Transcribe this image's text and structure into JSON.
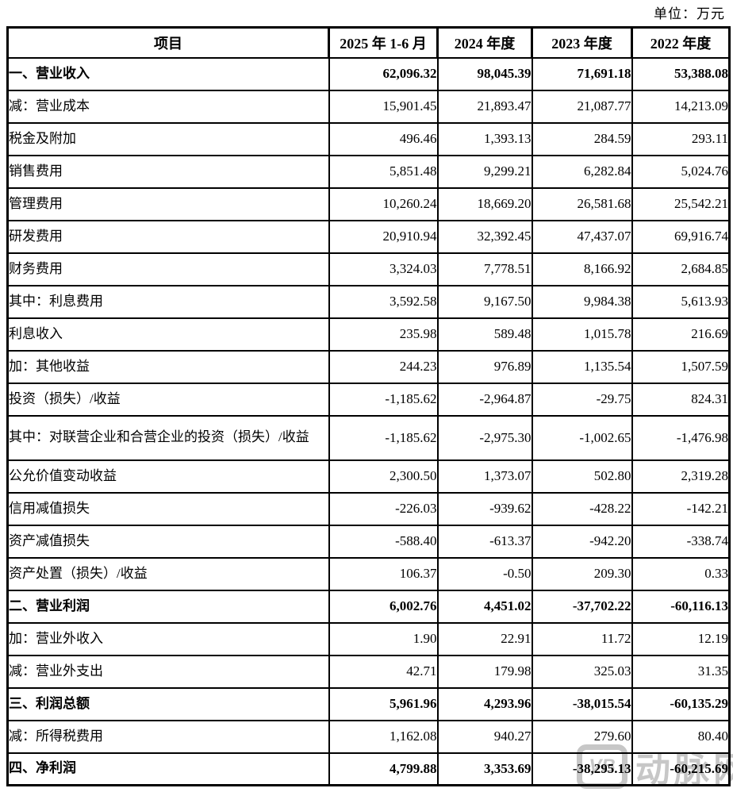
{
  "meta": {
    "unit_label": "单位：万元"
  },
  "table": {
    "columns": [
      "项目",
      "2025 年 1-6 月",
      "2024 年度",
      "2023 年度",
      "2022 年度"
    ],
    "rows": [
      {
        "label": "一、营业收入",
        "values": [
          "62,096.32",
          "98,045.39",
          "71,691.18",
          "53,388.08"
        ],
        "bold": true
      },
      {
        "label": "减：营业成本",
        "values": [
          "15,901.45",
          "21,893.47",
          "21,087.77",
          "14,213.09"
        ]
      },
      {
        "label": "税金及附加",
        "values": [
          "496.46",
          "1,393.13",
          "284.59",
          "293.11"
        ]
      },
      {
        "label": "销售费用",
        "values": [
          "5,851.48",
          "9,299.21",
          "6,282.84",
          "5,024.76"
        ]
      },
      {
        "label": "管理费用",
        "values": [
          "10,260.24",
          "18,669.20",
          "26,581.68",
          "25,542.21"
        ]
      },
      {
        "label": "研发费用",
        "values": [
          "20,910.94",
          "32,392.45",
          "47,437.07",
          "69,916.74"
        ]
      },
      {
        "label": "财务费用",
        "values": [
          "3,324.03",
          "7,778.51",
          "8,166.92",
          "2,684.85"
        ]
      },
      {
        "label": "其中：利息费用",
        "values": [
          "3,592.58",
          "9,167.50",
          "9,984.38",
          "5,613.93"
        ]
      },
      {
        "label": "利息收入",
        "values": [
          "235.98",
          "589.48",
          "1,015.78",
          "216.69"
        ]
      },
      {
        "label": "加：其他收益",
        "values": [
          "244.23",
          "976.89",
          "1,135.54",
          "1,507.59"
        ]
      },
      {
        "label": "投资（损失）/收益",
        "values": [
          "-1,185.62",
          "-2,964.87",
          "-29.75",
          "824.31"
        ]
      },
      {
        "label": "其中：对联营企业和合营企业的投资（损失）/收益",
        "values": [
          "-1,185.62",
          "-2,975.30",
          "-1,002.65",
          "-1,476.98"
        ],
        "tall": true
      },
      {
        "label": "公允价值变动收益",
        "values": [
          "2,300.50",
          "1,373.07",
          "502.80",
          "2,319.28"
        ]
      },
      {
        "label": "信用减值损失",
        "values": [
          "-226.03",
          "-939.62",
          "-428.22",
          "-142.21"
        ]
      },
      {
        "label": "资产减值损失",
        "values": [
          "-588.40",
          "-613.37",
          "-942.20",
          "-338.74"
        ]
      },
      {
        "label": "资产处置（损失）/收益",
        "values": [
          "106.37",
          "-0.50",
          "209.30",
          "0.33"
        ]
      },
      {
        "label": "二、营业利润",
        "values": [
          "6,002.76",
          "4,451.02",
          "-37,702.22",
          "-60,116.13"
        ],
        "bold": true
      },
      {
        "label": "加：营业外收入",
        "values": [
          "1.90",
          "22.91",
          "11.72",
          "12.19"
        ]
      },
      {
        "label": "减：营业外支出",
        "values": [
          "42.71",
          "179.98",
          "325.03",
          "31.35"
        ]
      },
      {
        "label": "三、利润总额",
        "values": [
          "5,961.96",
          "4,293.96",
          "-38,015.54",
          "-60,135.29"
        ],
        "bold": true
      },
      {
        "label": "减：所得税费用",
        "values": [
          "1,162.08",
          "940.27",
          "279.60",
          "80.40"
        ]
      },
      {
        "label": "四、净利润",
        "values": [
          "4,799.88",
          "3,353.69",
          "-38,295.13",
          "-60,215.69"
        ],
        "bold": true
      }
    ]
  },
  "watermark": {
    "logo_text": "VB",
    "text": "动脉网",
    "color": "#c7c7c7"
  }
}
